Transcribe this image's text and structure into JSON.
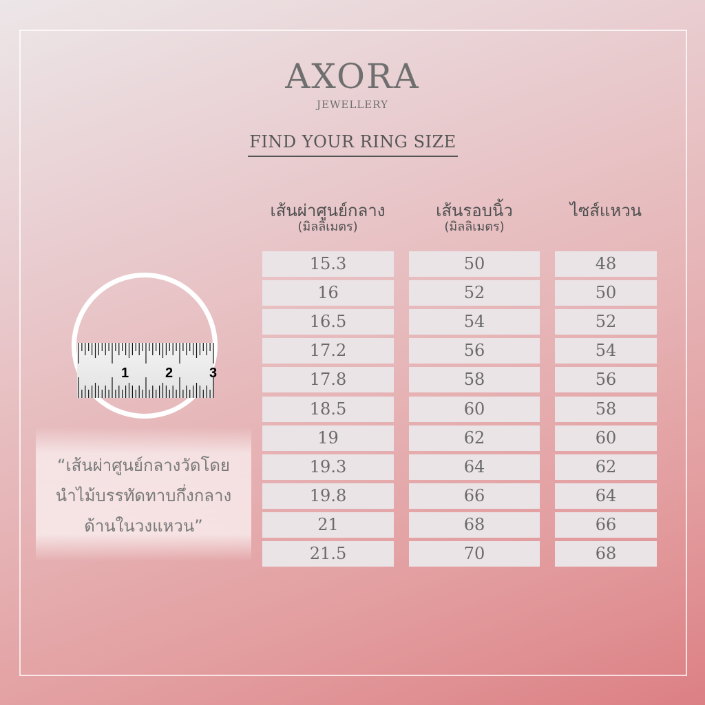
{
  "brand": {
    "name": "AXORA",
    "tagline": "JEWELLERY"
  },
  "title": "FIND YOUR RING SIZE",
  "columns": [
    {
      "label": "เส้นผ่าศูนย์กลาง",
      "unit": "(มิลลิเมตร)"
    },
    {
      "label": "เส้นรอบนิ้ว",
      "unit": "(มิลลิเมตร)"
    },
    {
      "label": "ไซส์แหวน",
      "unit": ""
    }
  ],
  "rows": [
    [
      "15.3",
      "50",
      "48"
    ],
    [
      "16",
      "52",
      "50"
    ],
    [
      "16.5",
      "54",
      "52"
    ],
    [
      "17.2",
      "56",
      "54"
    ],
    [
      "17.8",
      "58",
      "56"
    ],
    [
      "18.5",
      "60",
      "58"
    ],
    [
      "19",
      "62",
      "60"
    ],
    [
      "19.3",
      "64",
      "62"
    ],
    [
      "19.8",
      "66",
      "64"
    ],
    [
      "21",
      "68",
      "66"
    ],
    [
      "21.5",
      "70",
      "68"
    ]
  ],
  "ruler": {
    "numbers": [
      "1",
      "2",
      "3"
    ]
  },
  "quote": [
    "“เส้นผ่าศูนย์กลางวัดโดย",
    "นำไม้บรรทัดทาบกึ่งกลาง",
    "ด้านในวงแหวน”"
  ]
}
